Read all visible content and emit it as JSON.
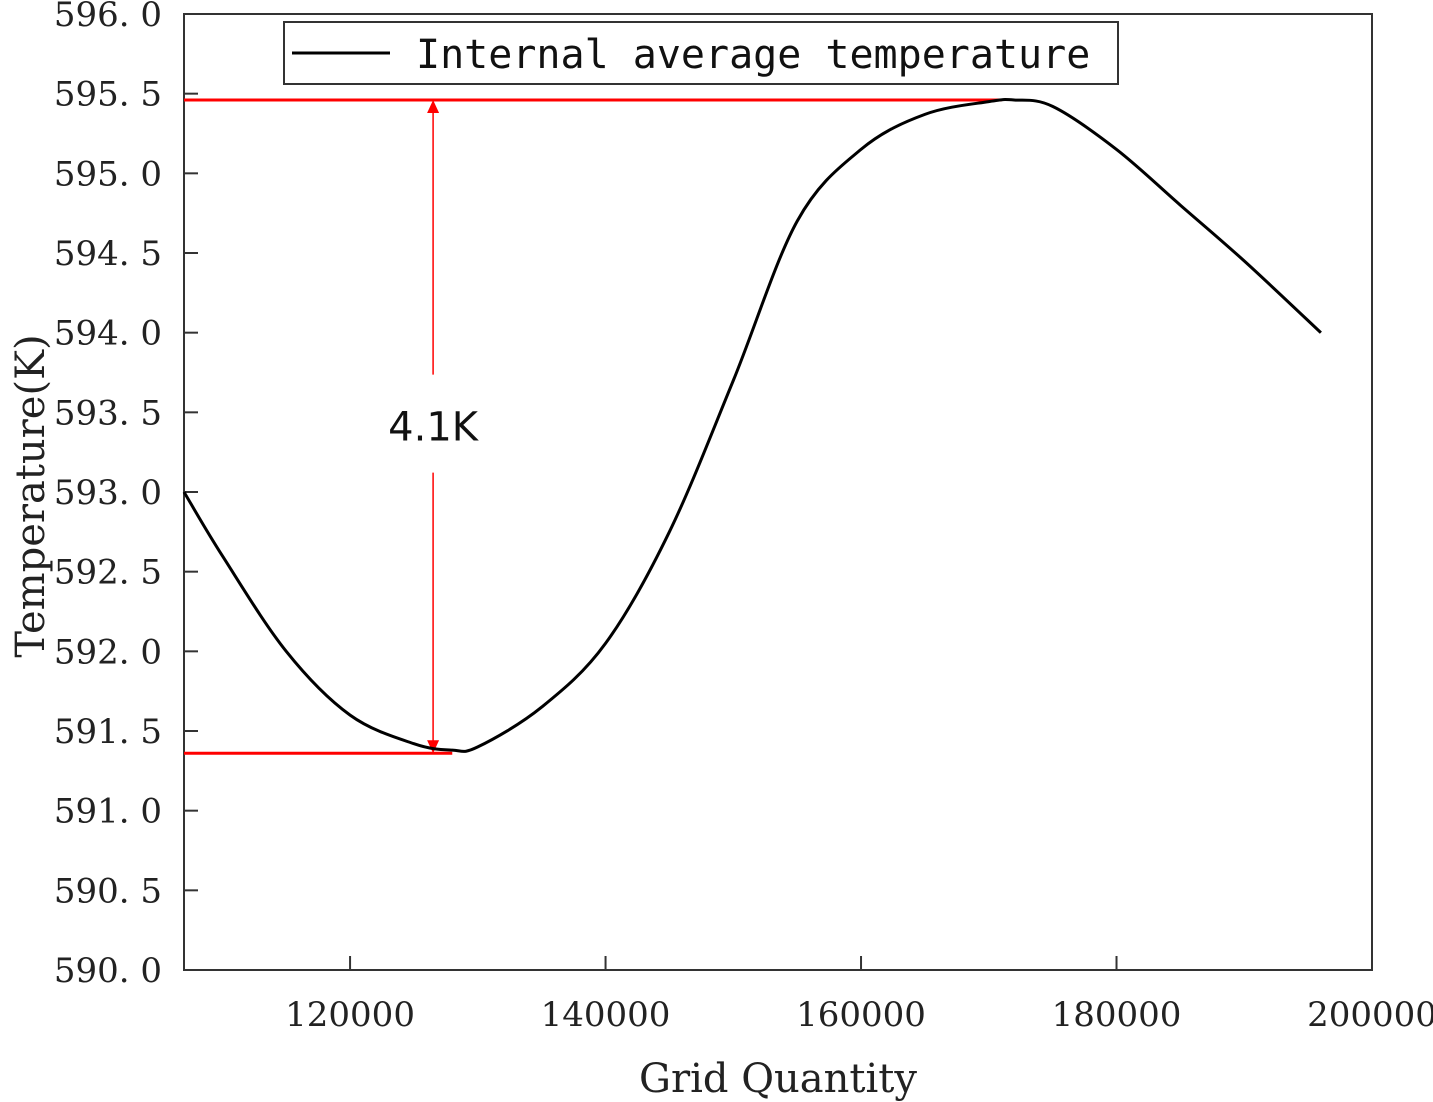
{
  "chart_data": {
    "type": "line",
    "title": "",
    "xlabel": "Grid Quantity",
    "ylabel": "Temperature(K)",
    "xlim": [
      107000,
      200000
    ],
    "ylim": [
      590.0,
      596.0
    ],
    "x_ticks": [
      120000,
      140000,
      160000,
      180000,
      200000
    ],
    "x_tick_labels": [
      "120000",
      "140000",
      "160000",
      "180000",
      "200000"
    ],
    "y_ticks": [
      590.0,
      590.5,
      591.0,
      591.5,
      592.0,
      592.5,
      593.0,
      593.5,
      594.0,
      594.5,
      595.0,
      595.5,
      596.0
    ],
    "y_tick_labels": [
      "590. 0",
      "590. 5",
      "591. 0",
      "591. 5",
      "592. 0",
      "592. 5",
      "593. 0",
      "593. 5",
      "594. 0",
      "594. 5",
      "595. 0",
      "595. 5",
      "596. 0"
    ],
    "grid": false,
    "legend_position": "top",
    "series": [
      {
        "name": "Internal average temperature",
        "color": "#000000",
        "x": [
          107000,
          110000,
          115000,
          120000,
          125000,
          128000,
          130000,
          135000,
          140000,
          145000,
          150000,
          155000,
          160000,
          165000,
          170000,
          172000,
          175000,
          180000,
          185000,
          190000,
          196000
        ],
        "y": [
          593.0,
          592.6,
          592.0,
          591.6,
          591.42,
          591.38,
          591.4,
          591.65,
          592.05,
          592.75,
          593.7,
          594.7,
          595.15,
          595.37,
          595.45,
          595.46,
          595.42,
          595.15,
          594.8,
          594.45,
          594.0
        ]
      }
    ],
    "annotations": {
      "max_line_y": 595.46,
      "max_line_x_end": 171000,
      "min_line_y": 591.36,
      "min_line_x_end": 128000,
      "arrow_x": 126500,
      "difference_label": "4.1K",
      "annotation_color": "#ff0000"
    }
  }
}
